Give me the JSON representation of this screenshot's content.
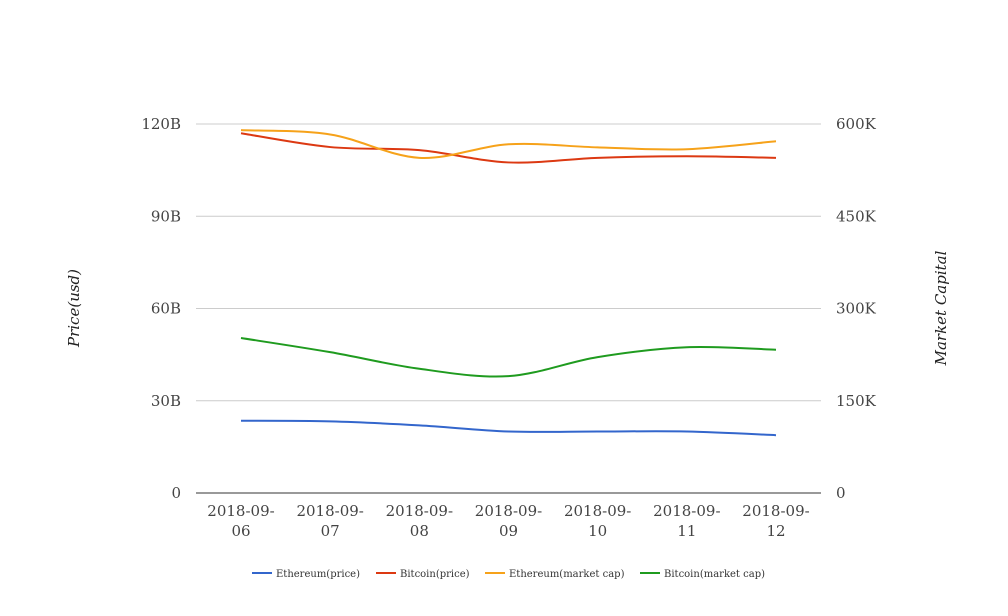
{
  "chart_data": {
    "type": "line",
    "x": [
      "2018-09-06",
      "2018-09-07",
      "2018-09-08",
      "2018-09-09",
      "2018-09-10",
      "2018-09-11",
      "2018-09-12"
    ],
    "x_tick_labels": [
      [
        "2018-09-",
        "06"
      ],
      [
        "2018-09-",
        "07"
      ],
      [
        "2018-09-",
        "08"
      ],
      [
        "2018-09-",
        "09"
      ],
      [
        "2018-09-",
        "10"
      ],
      [
        "2018-09-",
        "11"
      ],
      [
        "2018-09-",
        "12"
      ]
    ],
    "ylabel_left": "Price(usd)",
    "ylabel_right": "Market Capital",
    "ylim_left": [
      0,
      120000000000
    ],
    "ylim_right": [
      0,
      600000
    ],
    "yticks_left": [
      "0",
      "30B",
      "60B",
      "90B",
      "120B"
    ],
    "yticks_right": [
      "0",
      "150K",
      "300K",
      "450K",
      "600K"
    ],
    "grid": true,
    "legend_position": "bottom",
    "series": [
      {
        "name": "Ethereum(price)",
        "axis": "left",
        "color": "#3366cc",
        "values": [
          23500000000,
          23300000000,
          22000000000,
          20000000000,
          20000000000,
          20000000000,
          18800000000
        ]
      },
      {
        "name": "Bitcoin(price)",
        "axis": "left",
        "color": "#dc3912",
        "values": [
          117000000000,
          112500000000,
          111500000000,
          107500000000,
          109000000000,
          109500000000,
          109000000000
        ]
      },
      {
        "name": "Ethereum(market cap)",
        "axis": "right",
        "color": "#f6a21a",
        "values": [
          590000,
          583000,
          545000,
          567000,
          562000,
          559000,
          572000
        ]
      },
      {
        "name": "Bitcoin(market cap)",
        "axis": "right",
        "color": "#1f9b1f",
        "values": [
          252000,
          229000,
          202000,
          190000,
          221000,
          237000,
          233000
        ]
      }
    ]
  }
}
